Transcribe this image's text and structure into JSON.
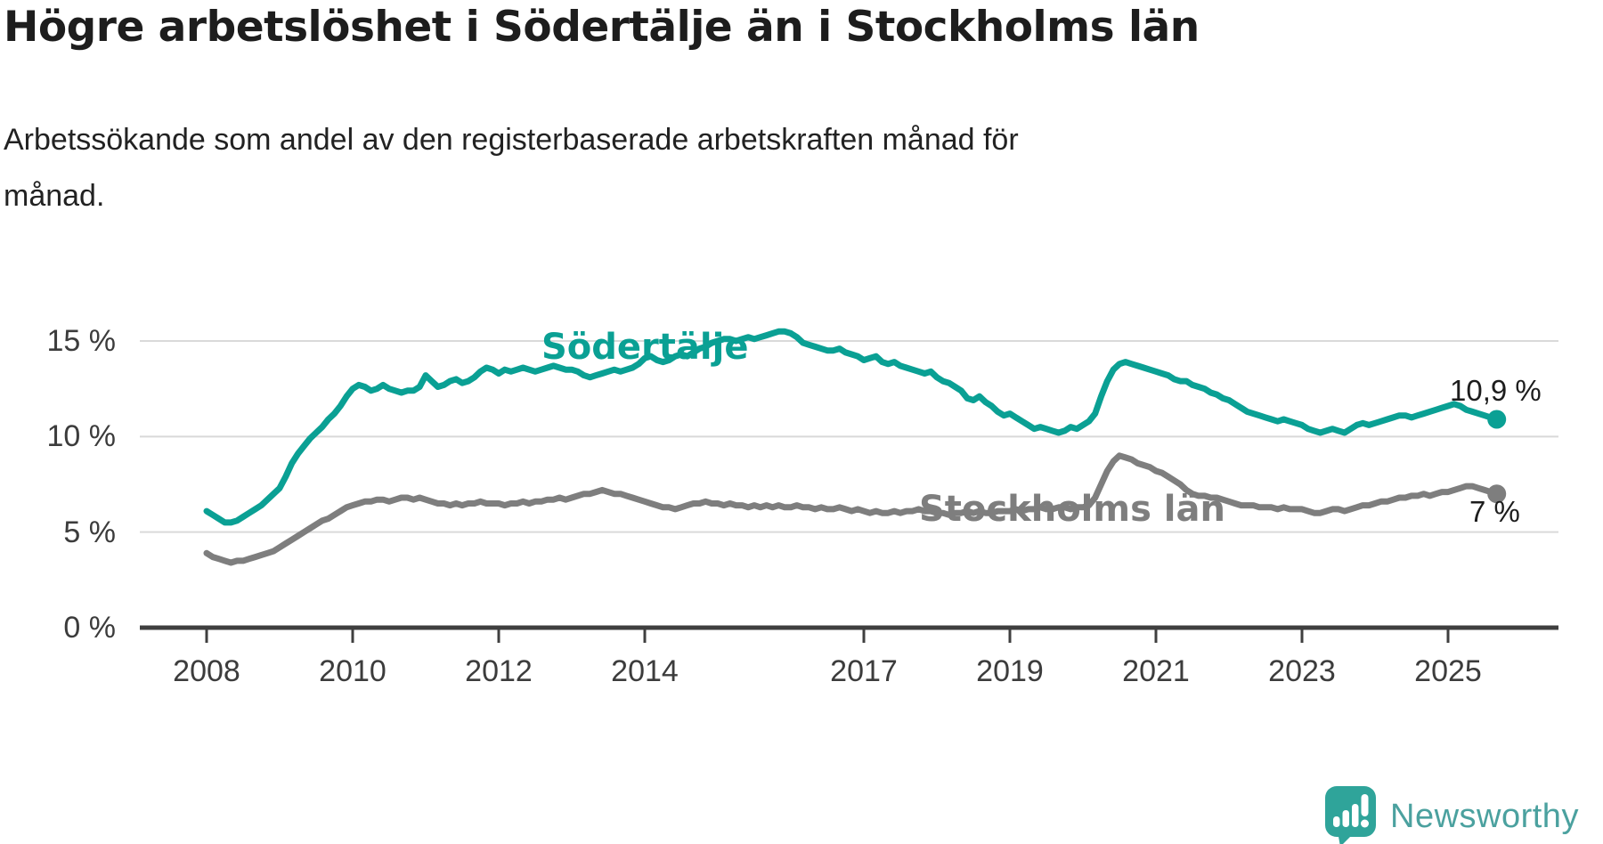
{
  "header": {
    "title": "Högre arbetslöshet i Södertälje än i Stockholms län",
    "subtitle_lines": [
      "Arbetssökande som andel av den registerbaserade arbetskraften månad för",
      "månad."
    ]
  },
  "footer": {
    "brand": "Newsworthy"
  },
  "colors": {
    "sodertalje": "#0aa094",
    "stockholm": "#7e7e7e",
    "grid": "#d9d9d9",
    "axis": "#3f3f3f",
    "text": "#1d1d1d",
    "tick_text": "#3c3c3c",
    "logo_icon": "#2fa49a",
    "logo_text": "#4ba19f"
  },
  "chart_data": {
    "type": "line",
    "title": "Högre arbetslöshet i Södertälje än i Stockholms län",
    "subtitle": "Arbetssökande som andel av den registerbaserade arbetskraften månad för månad.",
    "unit": "%",
    "frequency": "monthly",
    "start": {
      "year": 2008,
      "month": 1
    },
    "end": {
      "year": 2025,
      "month": 9
    },
    "x_axis": {
      "ticks": [
        2008,
        2010,
        2012,
        2014,
        2017,
        2019,
        2021,
        2023,
        2025
      ]
    },
    "y_axis": {
      "tick_values": [
        0,
        5,
        10,
        15
      ],
      "tick_labels": [
        "0 %",
        "5 %",
        "10 %",
        "15 %"
      ],
      "range": [
        0,
        16
      ]
    },
    "legend_position": "inline-labels",
    "grid": "horizontal-only",
    "series": [
      {
        "name": "Södertälje",
        "color": "#0aa094",
        "end_label": "10,9 %",
        "end_value": 10.9,
        "values": [
          6.1,
          5.9,
          5.7,
          5.5,
          5.5,
          5.6,
          5.8,
          6.0,
          6.2,
          6.4,
          6.7,
          7.0,
          7.3,
          7.9,
          8.6,
          9.1,
          9.5,
          9.9,
          10.2,
          10.5,
          10.9,
          11.2,
          11.6,
          12.1,
          12.5,
          12.7,
          12.6,
          12.4,
          12.5,
          12.7,
          12.5,
          12.4,
          12.3,
          12.4,
          12.4,
          12.6,
          13.2,
          12.9,
          12.6,
          12.7,
          12.9,
          13.0,
          12.8,
          12.9,
          13.1,
          13.4,
          13.6,
          13.5,
          13.3,
          13.5,
          13.4,
          13.5,
          13.6,
          13.5,
          13.4,
          13.5,
          13.6,
          13.7,
          13.6,
          13.5,
          13.5,
          13.4,
          13.2,
          13.1,
          13.2,
          13.3,
          13.4,
          13.5,
          13.4,
          13.5,
          13.6,
          13.8,
          14.1,
          14.2,
          14.0,
          13.9,
          14.0,
          14.2,
          14.3,
          14.2,
          14.4,
          14.6,
          14.7,
          14.9,
          15.0,
          15.1,
          15.1,
          15.0,
          15.1,
          15.2,
          15.1,
          15.2,
          15.3,
          15.4,
          15.5,
          15.5,
          15.4,
          15.2,
          14.9,
          14.8,
          14.7,
          14.6,
          14.5,
          14.5,
          14.6,
          14.4,
          14.3,
          14.2,
          14.0,
          14.1,
          14.2,
          13.9,
          13.8,
          13.9,
          13.7,
          13.6,
          13.5,
          13.4,
          13.3,
          13.4,
          13.1,
          12.9,
          12.8,
          12.6,
          12.4,
          12.0,
          11.9,
          12.1,
          11.8,
          11.6,
          11.3,
          11.1,
          11.2,
          11.0,
          10.8,
          10.6,
          10.4,
          10.5,
          10.4,
          10.3,
          10.2,
          10.3,
          10.5,
          10.4,
          10.6,
          10.8,
          11.2,
          12.1,
          12.9,
          13.5,
          13.8,
          13.9,
          13.8,
          13.7,
          13.6,
          13.5,
          13.4,
          13.3,
          13.2,
          13.0,
          12.9,
          12.9,
          12.7,
          12.6,
          12.5,
          12.3,
          12.2,
          12.0,
          11.9,
          11.7,
          11.5,
          11.3,
          11.2,
          11.1,
          11.0,
          10.9,
          10.8,
          10.9,
          10.8,
          10.7,
          10.6,
          10.4,
          10.3,
          10.2,
          10.3,
          10.4,
          10.3,
          10.2,
          10.4,
          10.6,
          10.7,
          10.6,
          10.7,
          10.8,
          10.9,
          11.0,
          11.1,
          11.1,
          11.0,
          11.1,
          11.2,
          11.3,
          11.4,
          11.5,
          11.6,
          11.7,
          11.6,
          11.4,
          11.3,
          11.2,
          11.1,
          11.0,
          10.9
        ]
      },
      {
        "name": "Stockholms län",
        "color": "#7e7e7e",
        "end_label": "7 %",
        "end_value": 7,
        "values": [
          3.9,
          3.7,
          3.6,
          3.5,
          3.4,
          3.5,
          3.5,
          3.6,
          3.7,
          3.8,
          3.9,
          4.0,
          4.2,
          4.4,
          4.6,
          4.8,
          5.0,
          5.2,
          5.4,
          5.6,
          5.7,
          5.9,
          6.1,
          6.3,
          6.4,
          6.5,
          6.6,
          6.6,
          6.7,
          6.7,
          6.6,
          6.7,
          6.8,
          6.8,
          6.7,
          6.8,
          6.7,
          6.6,
          6.5,
          6.5,
          6.4,
          6.5,
          6.4,
          6.5,
          6.5,
          6.6,
          6.5,
          6.5,
          6.5,
          6.4,
          6.5,
          6.5,
          6.6,
          6.5,
          6.6,
          6.6,
          6.7,
          6.7,
          6.8,
          6.7,
          6.8,
          6.9,
          7.0,
          7.0,
          7.1,
          7.2,
          7.1,
          7.0,
          7.0,
          6.9,
          6.8,
          6.7,
          6.6,
          6.5,
          6.4,
          6.3,
          6.3,
          6.2,
          6.3,
          6.4,
          6.5,
          6.5,
          6.6,
          6.5,
          6.5,
          6.4,
          6.5,
          6.4,
          6.4,
          6.3,
          6.4,
          6.3,
          6.4,
          6.3,
          6.4,
          6.3,
          6.3,
          6.4,
          6.3,
          6.3,
          6.2,
          6.3,
          6.2,
          6.2,
          6.3,
          6.2,
          6.1,
          6.2,
          6.1,
          6.0,
          6.1,
          6.0,
          6.0,
          6.1,
          6.0,
          6.1,
          6.1,
          6.2,
          6.1,
          6.1,
          6.0,
          6.0,
          5.9,
          6.0,
          6.0,
          6.1,
          6.0,
          6.1,
          6.0,
          6.0,
          6.1,
          6.1,
          6.1,
          6.2,
          6.1,
          6.2,
          6.2,
          6.3,
          6.2,
          6.2,
          6.3,
          6.3,
          6.2,
          6.3,
          6.3,
          6.4,
          6.8,
          7.5,
          8.2,
          8.7,
          9.0,
          8.9,
          8.8,
          8.6,
          8.5,
          8.4,
          8.2,
          8.1,
          7.9,
          7.7,
          7.5,
          7.2,
          7.0,
          6.9,
          6.9,
          6.8,
          6.8,
          6.7,
          6.6,
          6.5,
          6.4,
          6.4,
          6.4,
          6.3,
          6.3,
          6.3,
          6.2,
          6.3,
          6.2,
          6.2,
          6.2,
          6.1,
          6.0,
          6.0,
          6.1,
          6.2,
          6.2,
          6.1,
          6.2,
          6.3,
          6.4,
          6.4,
          6.5,
          6.6,
          6.6,
          6.7,
          6.8,
          6.8,
          6.9,
          6.9,
          7.0,
          6.9,
          7.0,
          7.1,
          7.1,
          7.2,
          7.3,
          7.4,
          7.4,
          7.3,
          7.2,
          7.1,
          7.0
        ]
      }
    ]
  }
}
